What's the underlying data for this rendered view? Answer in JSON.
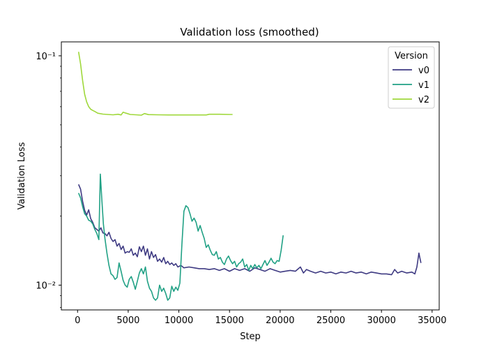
{
  "chart_data": {
    "type": "line",
    "title": "Validation loss (smoothed)",
    "xlabel": "Step",
    "ylabel": "Validation Loss",
    "xlim": [
      -1600,
      35700
    ],
    "ylim": [
      0.0078,
      0.115
    ],
    "yscale": "log",
    "grid": false,
    "legend_placement": "top-right",
    "legend_title": "Version",
    "x_ticks": [
      0,
      5000,
      10000,
      15000,
      20000,
      25000,
      30000,
      35000
    ],
    "y_ticks": [
      {
        "value": 0.01,
        "label": "10⁻²"
      },
      {
        "value": 0.1,
        "label": "10⁻¹"
      }
    ],
    "series": [
      {
        "name": "v0",
        "color": "#3e3a82",
        "points": [
          [
            100,
            0.0275
          ],
          [
            300,
            0.0262
          ],
          [
            500,
            0.0232
          ],
          [
            700,
            0.0212
          ],
          [
            900,
            0.0202
          ],
          [
            1100,
            0.0213
          ],
          [
            1300,
            0.0195
          ],
          [
            1500,
            0.0188
          ],
          [
            1700,
            0.0178
          ],
          [
            1900,
            0.0175
          ],
          [
            2100,
            0.0172
          ],
          [
            2300,
            0.0178
          ],
          [
            2500,
            0.0169
          ],
          [
            2700,
            0.0168
          ],
          [
            2900,
            0.0164
          ],
          [
            3100,
            0.017
          ],
          [
            3300,
            0.016
          ],
          [
            3500,
            0.0155
          ],
          [
            3700,
            0.0158
          ],
          [
            3900,
            0.0148
          ],
          [
            4100,
            0.0152
          ],
          [
            4300,
            0.0143
          ],
          [
            4500,
            0.0148
          ],
          [
            4700,
            0.0138
          ],
          [
            4900,
            0.014
          ],
          [
            5100,
            0.0139
          ],
          [
            5300,
            0.0144
          ],
          [
            5500,
            0.0135
          ],
          [
            5700,
            0.0138
          ],
          [
            5900,
            0.0133
          ],
          [
            6100,
            0.0147
          ],
          [
            6300,
            0.014
          ],
          [
            6500,
            0.0148
          ],
          [
            6700,
            0.0135
          ],
          [
            6900,
            0.0144
          ],
          [
            7100,
            0.013
          ],
          [
            7300,
            0.014
          ],
          [
            7500,
            0.0132
          ],
          [
            7700,
            0.0136
          ],
          [
            7900,
            0.0127
          ],
          [
            8100,
            0.013
          ],
          [
            8300,
            0.0126
          ],
          [
            8500,
            0.0132
          ],
          [
            8700,
            0.0124
          ],
          [
            8900,
            0.0127
          ],
          [
            9100,
            0.0123
          ],
          [
            9300,
            0.0125
          ],
          [
            9500,
            0.0122
          ],
          [
            9700,
            0.0124
          ],
          [
            9900,
            0.012
          ],
          [
            10200,
            0.0122
          ],
          [
            10500,
            0.0119
          ],
          [
            11000,
            0.012
          ],
          [
            11500,
            0.0119
          ],
          [
            12000,
            0.0118
          ],
          [
            12500,
            0.0118
          ],
          [
            13000,
            0.0117
          ],
          [
            13500,
            0.0118
          ],
          [
            14000,
            0.0116
          ],
          [
            14500,
            0.0118
          ],
          [
            15000,
            0.0115
          ],
          [
            15500,
            0.0118
          ],
          [
            16000,
            0.0116
          ],
          [
            16500,
            0.0118
          ],
          [
            17000,
            0.0115
          ],
          [
            17500,
            0.0119
          ],
          [
            18000,
            0.0117
          ],
          [
            18500,
            0.0115
          ],
          [
            19000,
            0.0118
          ],
          [
            19500,
            0.0116
          ],
          [
            20000,
            0.0114
          ],
          [
            20500,
            0.0115
          ],
          [
            21000,
            0.0116
          ],
          [
            21500,
            0.0115
          ],
          [
            22000,
            0.012
          ],
          [
            22300,
            0.0113
          ],
          [
            22600,
            0.0117
          ],
          [
            23000,
            0.0115
          ],
          [
            23500,
            0.0113
          ],
          [
            24000,
            0.0115
          ],
          [
            24500,
            0.0113
          ],
          [
            25000,
            0.0114
          ],
          [
            25500,
            0.0112
          ],
          [
            26000,
            0.0114
          ],
          [
            26500,
            0.0113
          ],
          [
            27000,
            0.0115
          ],
          [
            27500,
            0.0113
          ],
          [
            28000,
            0.0114
          ],
          [
            28500,
            0.0112
          ],
          [
            29000,
            0.0114
          ],
          [
            29500,
            0.0113
          ],
          [
            30000,
            0.0112
          ],
          [
            30500,
            0.0112
          ],
          [
            31000,
            0.0111
          ],
          [
            31300,
            0.0117
          ],
          [
            31600,
            0.0113
          ],
          [
            32000,
            0.0115
          ],
          [
            32500,
            0.0113
          ],
          [
            33000,
            0.0114
          ],
          [
            33300,
            0.0112
          ],
          [
            33500,
            0.012
          ],
          [
            33700,
            0.0138
          ],
          [
            33900,
            0.0125
          ]
        ]
      },
      {
        "name": "v1",
        "color": "#21a185",
        "points": [
          [
            100,
            0.0252
          ],
          [
            300,
            0.024
          ],
          [
            500,
            0.022
          ],
          [
            700,
            0.0205
          ],
          [
            900,
            0.02
          ],
          [
            1100,
            0.0192
          ],
          [
            1300,
            0.019
          ],
          [
            1500,
            0.0185
          ],
          [
            1700,
            0.0175
          ],
          [
            1900,
            0.0168
          ],
          [
            2100,
            0.0158
          ],
          [
            2250,
            0.0305
          ],
          [
            2400,
            0.0235
          ],
          [
            2550,
            0.0185
          ],
          [
            2700,
            0.016
          ],
          [
            2900,
            0.0138
          ],
          [
            3100,
            0.0122
          ],
          [
            3300,
            0.0112
          ],
          [
            3500,
            0.011
          ],
          [
            3700,
            0.0106
          ],
          [
            3900,
            0.0108
          ],
          [
            4100,
            0.0125
          ],
          [
            4300,
            0.0115
          ],
          [
            4500,
            0.0105
          ],
          [
            4700,
            0.01
          ],
          [
            4900,
            0.0098
          ],
          [
            5100,
            0.0106
          ],
          [
            5300,
            0.0109
          ],
          [
            5500,
            0.0103
          ],
          [
            5700,
            0.0096
          ],
          [
            5900,
            0.0104
          ],
          [
            6100,
            0.0113
          ],
          [
            6300,
            0.0118
          ],
          [
            6500,
            0.0112
          ],
          [
            6700,
            0.012
          ],
          [
            6900,
            0.0104
          ],
          [
            7100,
            0.0097
          ],
          [
            7300,
            0.0094
          ],
          [
            7500,
            0.0088
          ],
          [
            7700,
            0.0086
          ],
          [
            7900,
            0.0088
          ],
          [
            8100,
            0.01
          ],
          [
            8300,
            0.0094
          ],
          [
            8500,
            0.0097
          ],
          [
            8700,
            0.0092
          ],
          [
            8900,
            0.0086
          ],
          [
            9100,
            0.0088
          ],
          [
            9300,
            0.0099
          ],
          [
            9500,
            0.0094
          ],
          [
            9700,
            0.0098
          ],
          [
            9900,
            0.0095
          ],
          [
            10100,
            0.0102
          ],
          [
            10300,
            0.015
          ],
          [
            10500,
            0.021
          ],
          [
            10700,
            0.0222
          ],
          [
            10900,
            0.0218
          ],
          [
            11100,
            0.0205
          ],
          [
            11300,
            0.019
          ],
          [
            11500,
            0.0196
          ],
          [
            11700,
            0.0188
          ],
          [
            11900,
            0.0172
          ],
          [
            12100,
            0.0182
          ],
          [
            12300,
            0.017
          ],
          [
            12500,
            0.016
          ],
          [
            12700,
            0.0146
          ],
          [
            12900,
            0.015
          ],
          [
            13100,
            0.0142
          ],
          [
            13300,
            0.0136
          ],
          [
            13500,
            0.0135
          ],
          [
            13700,
            0.014
          ],
          [
            13900,
            0.013
          ],
          [
            14100,
            0.0132
          ],
          [
            14300,
            0.0126
          ],
          [
            14500,
            0.0123
          ],
          [
            14700,
            0.013
          ],
          [
            14900,
            0.0134
          ],
          [
            15100,
            0.0128
          ],
          [
            15300,
            0.0124
          ],
          [
            15500,
            0.0127
          ],
          [
            15700,
            0.012
          ],
          [
            15900,
            0.0124
          ],
          [
            16100,
            0.0126
          ],
          [
            16300,
            0.013
          ],
          [
            16500,
            0.012
          ],
          [
            16700,
            0.0123
          ],
          [
            16900,
            0.0116
          ],
          [
            17100,
            0.0122
          ],
          [
            17300,
            0.0118
          ],
          [
            17500,
            0.0123
          ],
          [
            17700,
            0.0119
          ],
          [
            17900,
            0.0122
          ],
          [
            18100,
            0.0118
          ],
          [
            18300,
            0.0123
          ],
          [
            18500,
            0.0128
          ],
          [
            18700,
            0.0122
          ],
          [
            18900,
            0.0126
          ],
          [
            19100,
            0.0131
          ],
          [
            19300,
            0.0126
          ],
          [
            19500,
            0.0124
          ],
          [
            19700,
            0.0128
          ],
          [
            19900,
            0.0127
          ],
          [
            20100,
            0.0142
          ],
          [
            20300,
            0.0165
          ]
        ]
      },
      {
        "name": "v2",
        "color": "#9fd83b",
        "points": [
          [
            100,
            0.104
          ],
          [
            300,
            0.092
          ],
          [
            500,
            0.078
          ],
          [
            700,
            0.068
          ],
          [
            900,
            0.063
          ],
          [
            1100,
            0.06
          ],
          [
            1300,
            0.0585
          ],
          [
            1500,
            0.0578
          ],
          [
            1700,
            0.0572
          ],
          [
            2000,
            0.0562
          ],
          [
            2500,
            0.0557
          ],
          [
            3000,
            0.0555
          ],
          [
            3500,
            0.0553
          ],
          [
            4000,
            0.0556
          ],
          [
            4300,
            0.0552
          ],
          [
            4500,
            0.0568
          ],
          [
            4800,
            0.0562
          ],
          [
            5200,
            0.0555
          ],
          [
            5800,
            0.0553
          ],
          [
            6300,
            0.0551
          ],
          [
            6600,
            0.056
          ],
          [
            7000,
            0.0554
          ],
          [
            8000,
            0.0553
          ],
          [
            9000,
            0.0552
          ],
          [
            10000,
            0.0552
          ],
          [
            11000,
            0.0552
          ],
          [
            12000,
            0.0552
          ],
          [
            12700,
            0.0552
          ],
          [
            13000,
            0.0556
          ],
          [
            14000,
            0.0556
          ],
          [
            15000,
            0.0555
          ],
          [
            15300,
            0.0555
          ]
        ]
      }
    ]
  }
}
